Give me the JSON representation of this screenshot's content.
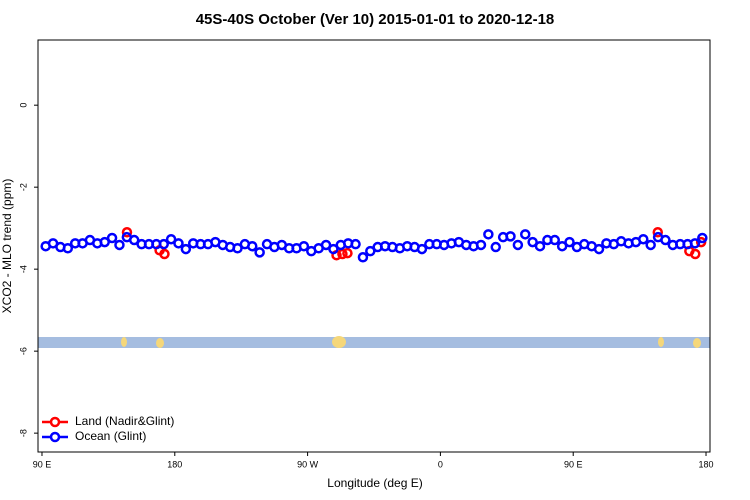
{
  "chart_data": {
    "type": "scatter",
    "title": "45S-40S October (Ver 10)   2015-01-01 to 2020-12-18",
    "x_label": "Longitude (deg E)",
    "y_label": "XCO2 - MLO trend (ppm)",
    "xlim": [
      87.3,
      542.7
    ],
    "ylim": [
      -8.46,
      1.59
    ],
    "xticks": [
      {
        "value": 90,
        "label": "90 E"
      },
      180,
      {
        "value": 270,
        "label": "90 W"
      },
      {
        "value": 360,
        "label": "0"
      },
      {
        "value": 450,
        "label": "90 E"
      },
      {
        "value": 540,
        "label": "180"
      }
    ],
    "yticks": [
      0,
      -2,
      -4,
      -6,
      -8
    ],
    "legend": "bottom-left",
    "series": [
      {
        "name": "Land (Nadir&Glint)",
        "color": "#ff0000",
        "x": [
          147.6,
          169.7,
          173.0,
          289.6,
          293.6,
          297.0,
          507.3,
          528.7,
          532.7,
          536.7
        ],
        "values": [
          -3.1,
          -3.54,
          -3.63,
          -3.66,
          -3.63,
          -3.61,
          -3.1,
          -3.56,
          -3.63,
          -3.34
        ]
      },
      {
        "name": "Ocean (Glint)",
        "color": "#0000ff",
        "x": [
          92.5,
          97.5,
          102.5,
          107.5,
          112.5,
          117.5,
          122.5,
          127.5,
          132.5,
          137.5,
          142.5,
          147.5,
          152.5,
          157.5,
          162.5,
          167.5,
          172.5,
          177.5,
          182.5,
          187.5,
          192.5,
          197.5,
          202.5,
          207.5,
          212.5,
          217.5,
          222.5,
          227.5,
          232.5,
          237.5,
          242.5,
          247.5,
          252.5,
          257.5,
          262.5,
          267.5,
          272.5,
          277.5,
          282.5,
          287.5,
          292.5,
          297.5,
          302.5,
          307.5,
          312.5,
          317.5,
          322.5,
          327.5,
          332.5,
          337.5,
          342.5,
          347.5,
          352.5,
          357.5,
          362.5,
          367.5,
          372.5,
          377.5,
          382.5,
          387.5,
          392.5,
          397.5,
          402.5,
          407.5,
          412.5,
          417.5,
          422.5,
          427.5,
          432.5,
          437.5,
          442.5,
          447.5,
          452.5,
          457.5,
          462.5,
          467.5,
          472.5,
          477.5,
          482.5,
          487.5,
          492.5,
          497.5,
          502.5,
          507.5,
          512.5,
          517.5,
          522.5,
          527.5,
          532.5,
          537.5
        ],
        "values": [
          -3.44,
          -3.37,
          -3.46,
          -3.49,
          -3.37,
          -3.37,
          -3.29,
          -3.37,
          -3.34,
          -3.24,
          -3.41,
          -3.22,
          -3.29,
          -3.39,
          -3.39,
          -3.39,
          -3.39,
          -3.27,
          -3.37,
          -3.51,
          -3.37,
          -3.39,
          -3.39,
          -3.34,
          -3.41,
          -3.46,
          -3.49,
          -3.39,
          -3.44,
          -3.59,
          -3.39,
          -3.46,
          -3.41,
          -3.49,
          -3.49,
          -3.44,
          -3.56,
          -3.49,
          -3.41,
          -3.51,
          -3.41,
          -3.37,
          -3.39,
          -3.71,
          -3.56,
          -3.46,
          -3.44,
          -3.46,
          -3.49,
          -3.44,
          -3.46,
          -3.51,
          -3.39,
          -3.39,
          -3.41,
          -3.37,
          -3.34,
          -3.41,
          -3.44,
          -3.41,
          -3.15,
          -3.46,
          -3.22,
          -3.2,
          -3.41,
          -3.15,
          -3.34,
          -3.44,
          -3.29,
          -3.29,
          -3.44,
          -3.34,
          -3.46,
          -3.39,
          -3.44,
          -3.51,
          -3.37,
          -3.39,
          -3.32,
          -3.37,
          -3.34,
          -3.27,
          -3.41,
          -3.22,
          -3.29,
          -3.41,
          -3.39,
          -3.39,
          -3.37,
          -3.24
        ]
      }
    ]
  }
}
